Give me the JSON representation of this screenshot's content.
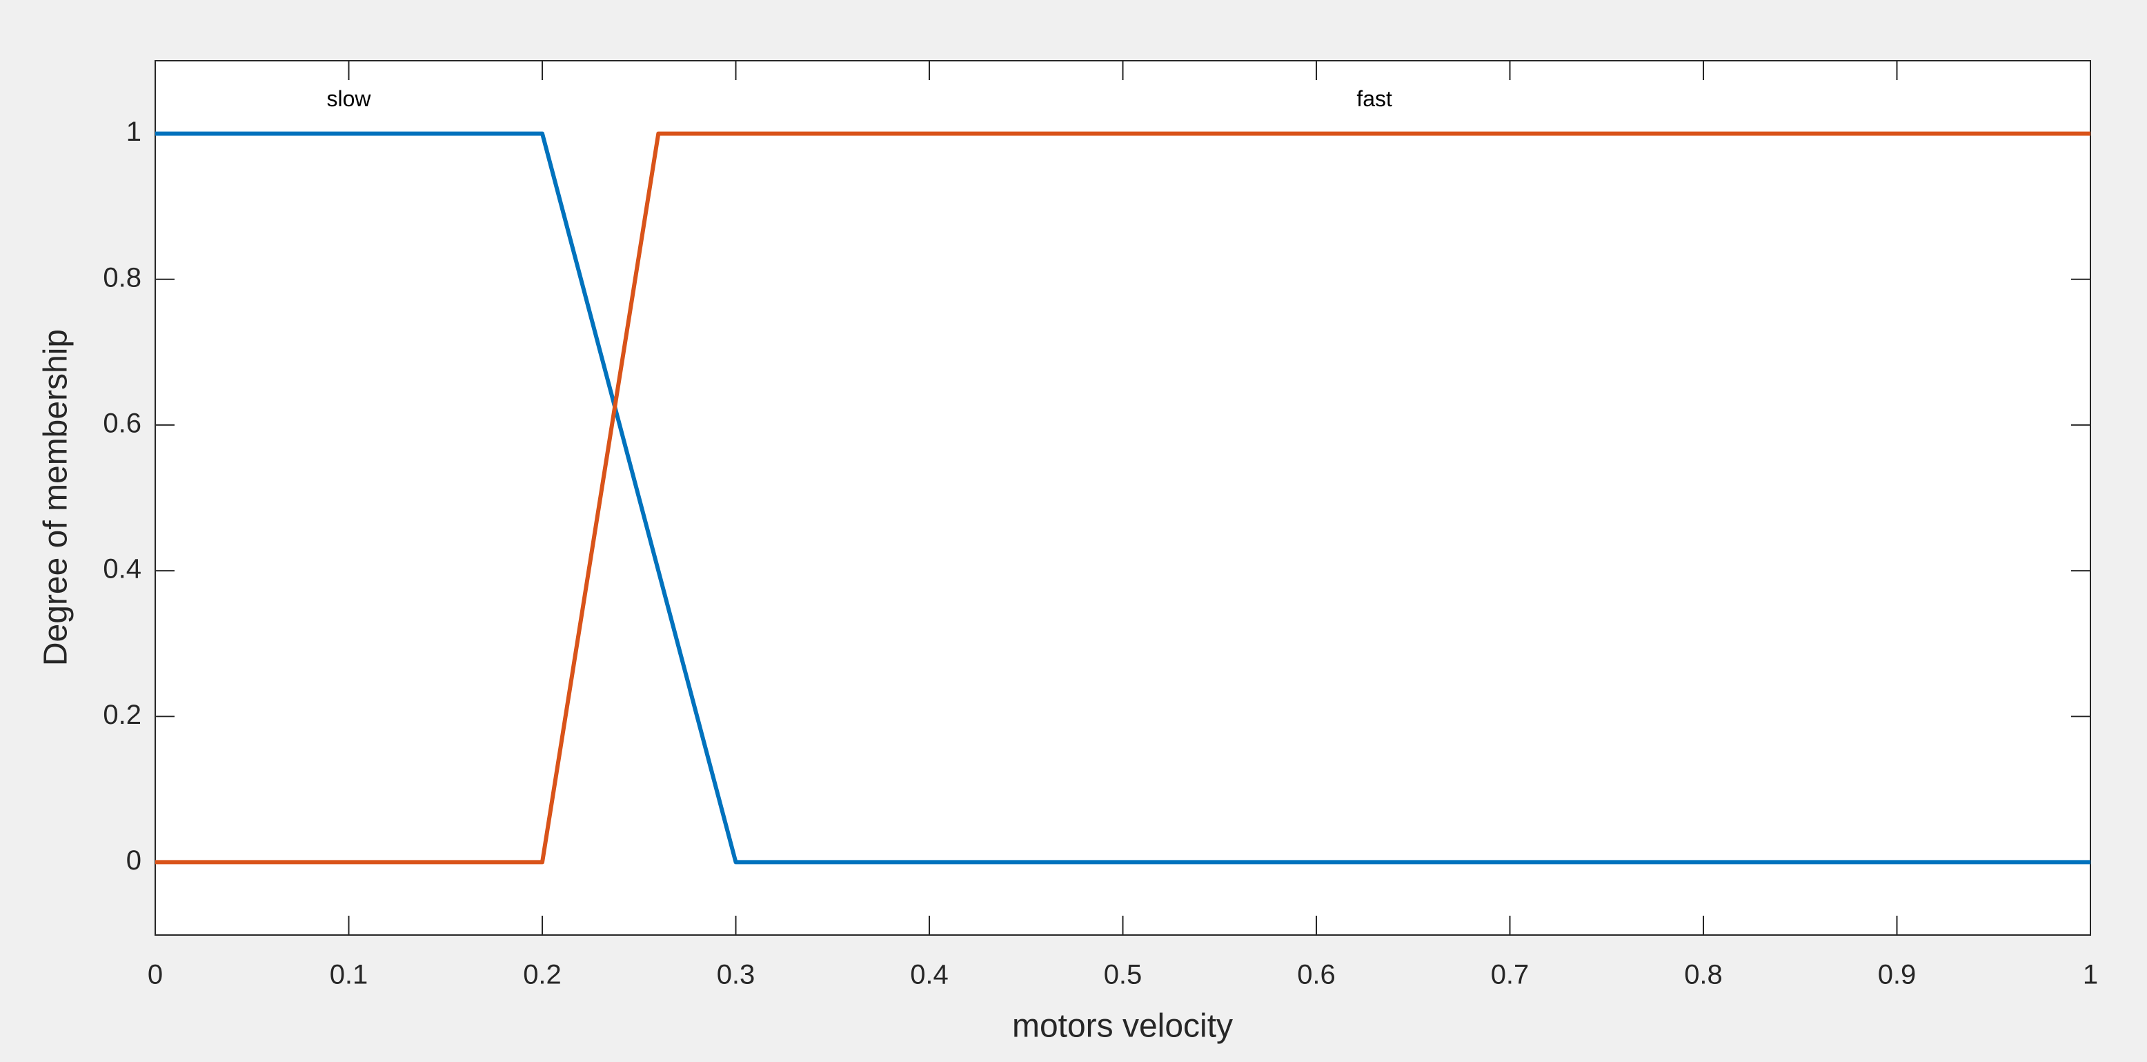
{
  "chart_data": {
    "type": "line",
    "x_label": "motors  velocity",
    "y_label": "Degree of membership",
    "xlim": [
      0,
      1
    ],
    "ylim": [
      -0.1,
      1.1
    ],
    "xticks": [
      0,
      0.1,
      0.2,
      0.3,
      0.4,
      0.5,
      0.6,
      0.7,
      0.8,
      0.9,
      1
    ],
    "yticks": [
      0,
      0.2,
      0.4,
      0.6,
      0.8,
      1
    ],
    "grid": false,
    "series": [
      {
        "name": "slow",
        "color": "#0072bd",
        "x": [
          0,
          0.2,
          0.3,
          1
        ],
        "values": [
          1,
          1,
          0,
          0
        ]
      },
      {
        "name": "fast",
        "color": "#d95319",
        "x": [
          0,
          0.2,
          0.26,
          1
        ],
        "values": [
          0,
          0,
          1,
          1
        ]
      }
    ]
  }
}
